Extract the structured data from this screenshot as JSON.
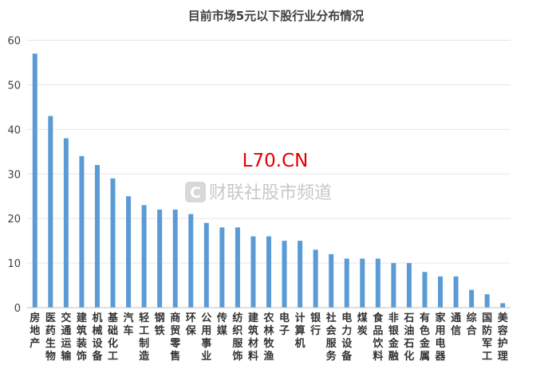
{
  "chart_data": {
    "type": "bar",
    "title": "目前市场5元以下股行业分布情况",
    "xlabel": "",
    "ylabel": "",
    "ylim": [
      0,
      60
    ],
    "yticks": [
      0,
      10,
      20,
      30,
      40,
      50,
      60
    ],
    "grid": true,
    "legend": "none",
    "categories": [
      "房地产",
      "医药生物",
      "交通运输",
      "建筑装饰",
      "机械设备",
      "基础化工",
      "汽车",
      "轻工制造",
      "钢铁",
      "商贸零售",
      "环保",
      "公用事业",
      "传媒",
      "纺织服饰",
      "建筑材料",
      "农林牧渔",
      "电子",
      "计算机",
      "银行",
      "社会服务",
      "电力设备",
      "煤炭",
      "食品饮料",
      "非银金融",
      "石油石化",
      "有色金属",
      "家用电器",
      "通信",
      "综合",
      "国防军工",
      "美容护理"
    ],
    "values": [
      57,
      43,
      38,
      34,
      32,
      29,
      25,
      23,
      22,
      22,
      21,
      19,
      18,
      18,
      16,
      16,
      15,
      15,
      13,
      12,
      11,
      11,
      11,
      10,
      10,
      8,
      7,
      7,
      4,
      3,
      1
    ],
    "bar_color": "#5b9bd5"
  },
  "watermark": {
    "site": "L70.CN",
    "logo_letter": "C",
    "channel": "财联社股市频道",
    "site_color": "#e00000",
    "channel_color": "#c8c8c8"
  }
}
